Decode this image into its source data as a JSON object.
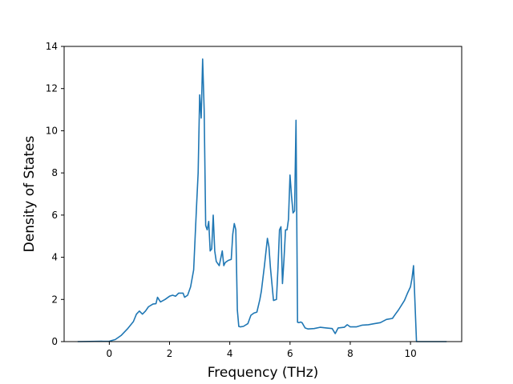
{
  "chart_data": {
    "type": "line",
    "title": "",
    "xlabel": "Frequency (THz)",
    "ylabel": "Density of States",
    "xlim": [
      -1.5,
      11.7
    ],
    "ylim": [
      0,
      14
    ],
    "xticks": [
      0,
      2,
      4,
      6,
      8,
      10
    ],
    "yticks": [
      0,
      2,
      4,
      6,
      8,
      10,
      12,
      14
    ],
    "grid": false,
    "line_color": "#1f77b4",
    "series": [
      {
        "x": [
          -1.05,
          0.0,
          0.2,
          0.4,
          0.6,
          0.8,
          0.9,
          1.0,
          1.1,
          1.2,
          1.3,
          1.45,
          1.55,
          1.6,
          1.7,
          1.85,
          2.0,
          2.1,
          2.2,
          2.3,
          2.45,
          2.5,
          2.6,
          2.7,
          2.8,
          2.85,
          2.9,
          2.95,
          3.0,
          3.05,
          3.1,
          3.15,
          3.2,
          3.25,
          3.3,
          3.35,
          3.4,
          3.45,
          3.5,
          3.55,
          3.65,
          3.75,
          3.8,
          3.85,
          3.95,
          4.05,
          4.1,
          4.15,
          4.2,
          4.25,
          4.3,
          4.35,
          4.45,
          4.6,
          4.7,
          4.8,
          4.9,
          5.0,
          5.05,
          5.15,
          5.25,
          5.3,
          5.35,
          5.45,
          5.55,
          5.6,
          5.65,
          5.7,
          5.75,
          5.8,
          5.85,
          5.9,
          5.95,
          6.0,
          6.05,
          6.1,
          6.15,
          6.2,
          6.25,
          6.3,
          6.35,
          6.4,
          6.5,
          6.6,
          6.8,
          7.0,
          7.2,
          7.4,
          7.5,
          7.6,
          7.8,
          7.9,
          8.0,
          8.2,
          8.4,
          8.6,
          8.8,
          9.0,
          9.2,
          9.4,
          9.5,
          9.6,
          9.8,
          9.9,
          10.0,
          10.05,
          10.1,
          10.2,
          10.8,
          11.2
        ],
        "y": [
          0,
          0.02,
          0.1,
          0.3,
          0.6,
          0.95,
          1.3,
          1.45,
          1.3,
          1.45,
          1.65,
          1.78,
          1.8,
          2.1,
          1.88,
          2.0,
          2.15,
          2.2,
          2.15,
          2.3,
          2.3,
          2.1,
          2.2,
          2.6,
          3.4,
          5.0,
          6.5,
          8.0,
          11.7,
          10.6,
          13.4,
          11.0,
          5.5,
          5.3,
          5.7,
          4.3,
          4.4,
          6.0,
          4.3,
          3.8,
          3.6,
          4.3,
          3.6,
          3.75,
          3.85,
          3.9,
          5.1,
          5.6,
          5.3,
          1.5,
          0.72,
          0.7,
          0.72,
          0.85,
          1.25,
          1.35,
          1.4,
          2.0,
          2.4,
          3.6,
          4.9,
          4.5,
          3.5,
          1.95,
          2.0,
          3.5,
          5.3,
          5.45,
          2.75,
          3.9,
          5.3,
          5.3,
          5.8,
          7.9,
          6.9,
          6.1,
          6.2,
          10.5,
          0.92,
          0.9,
          0.93,
          0.9,
          0.65,
          0.6,
          0.62,
          0.68,
          0.65,
          0.62,
          0.38,
          0.65,
          0.68,
          0.8,
          0.7,
          0.7,
          0.78,
          0.8,
          0.85,
          0.9,
          1.05,
          1.1,
          1.3,
          1.5,
          1.95,
          2.3,
          2.6,
          3.0,
          3.6,
          0,
          0,
          0
        ]
      }
    ]
  }
}
